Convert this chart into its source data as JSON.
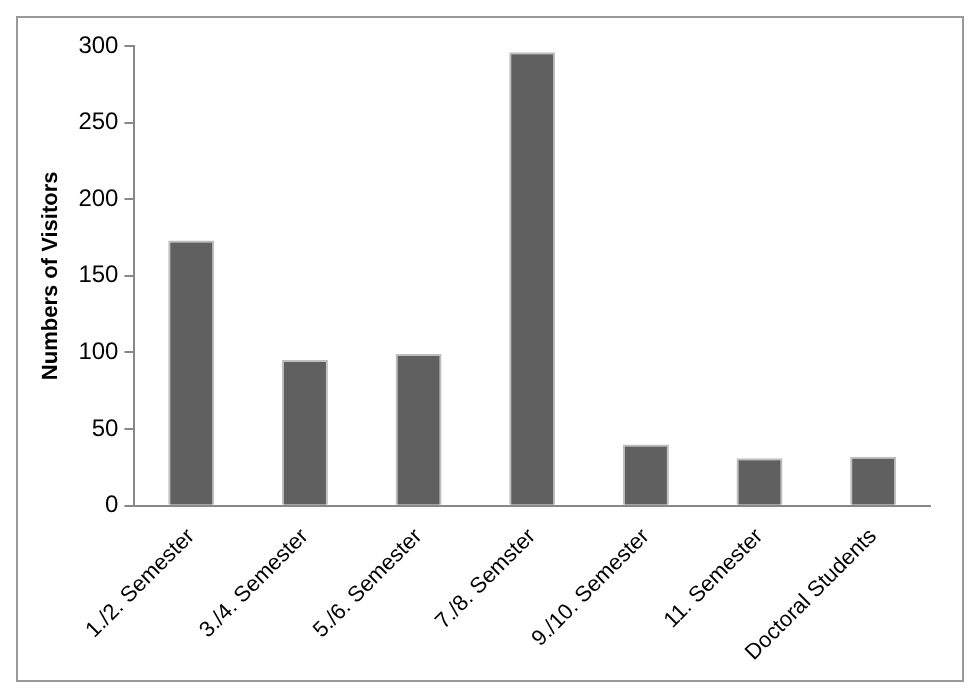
{
  "chart_data": {
    "type": "bar",
    "ylabel": "Numbers of Visitors",
    "categories": [
      "1./2. Semester",
      "3./4. Semester",
      "5./6. Semester",
      "7./8. Semster",
      "9./10. Semester",
      "11. Semester",
      "Doctoral Students"
    ],
    "values": [
      173,
      95,
      99,
      296,
      40,
      31,
      32
    ],
    "color": "#606060",
    "ylim": [
      0,
      300
    ],
    "yticks": [
      0,
      50,
      100,
      150,
      200,
      250,
      300
    ],
    "grid": false,
    "legend": false
  }
}
